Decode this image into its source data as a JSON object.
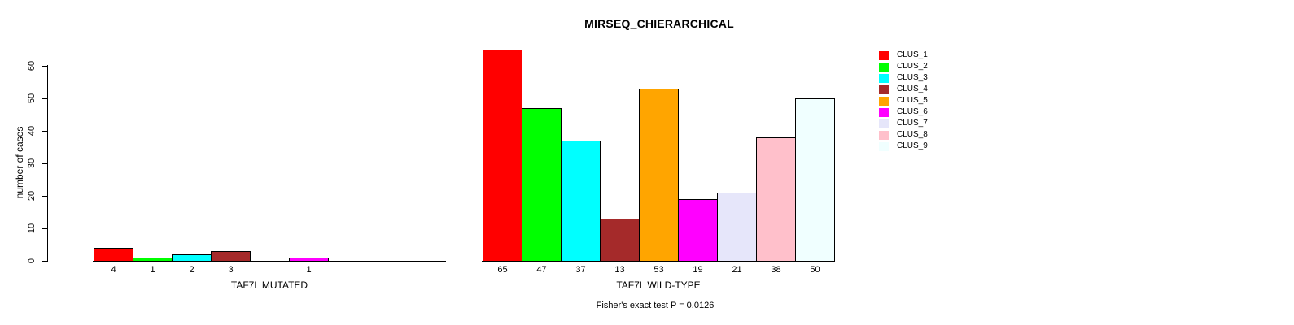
{
  "title": "MIRSEQ_CHIERARCHICAL",
  "footnote": "Fisher's exact test P = 0.0126",
  "chart_data": {
    "type": "bar",
    "title": "MIRSEQ_CHIERARCHICAL",
    "ylabel": "number of cases",
    "ylim": [
      0,
      65
    ],
    "yticks": [
      0,
      10,
      20,
      30,
      40,
      50,
      60
    ],
    "grid": false,
    "legend_position": "right-outside",
    "categories": [
      "TAF7L MUTATED",
      "TAF7L WILD-TYPE"
    ],
    "series": [
      {
        "name": "CLUS_1",
        "color": "#FF0000",
        "values": [
          4,
          65
        ]
      },
      {
        "name": "CLUS_2",
        "color": "#00FF00",
        "values": [
          1,
          47
        ]
      },
      {
        "name": "CLUS_3",
        "color": "#00FFFF",
        "values": [
          2,
          37
        ]
      },
      {
        "name": "CLUS_4",
        "color": "#A52A2A",
        "values": [
          3,
          13
        ]
      },
      {
        "name": "CLUS_5",
        "color": "#FFA500",
        "values": [
          0,
          53
        ]
      },
      {
        "name": "CLUS_6",
        "color": "#FF00FF",
        "values": [
          1,
          19
        ]
      },
      {
        "name": "CLUS_7",
        "color": "#E6E6FA",
        "values": [
          0,
          21
        ]
      },
      {
        "name": "CLUS_8",
        "color": "#FFC0CB",
        "values": [
          0,
          38
        ]
      },
      {
        "name": "CLUS_9",
        "color": "#F0FFFF",
        "values": [
          0,
          50
        ]
      }
    ],
    "value_labels": {
      "show": true,
      "hide_zero": true
    },
    "legend_entries": [
      "CLUS_1",
      "CLUS_2",
      "CLUS_3",
      "CLUS_4",
      "CLUS_5",
      "CLUS_6",
      "CLUS_7",
      "CLUS_8",
      "CLUS_9"
    ]
  }
}
